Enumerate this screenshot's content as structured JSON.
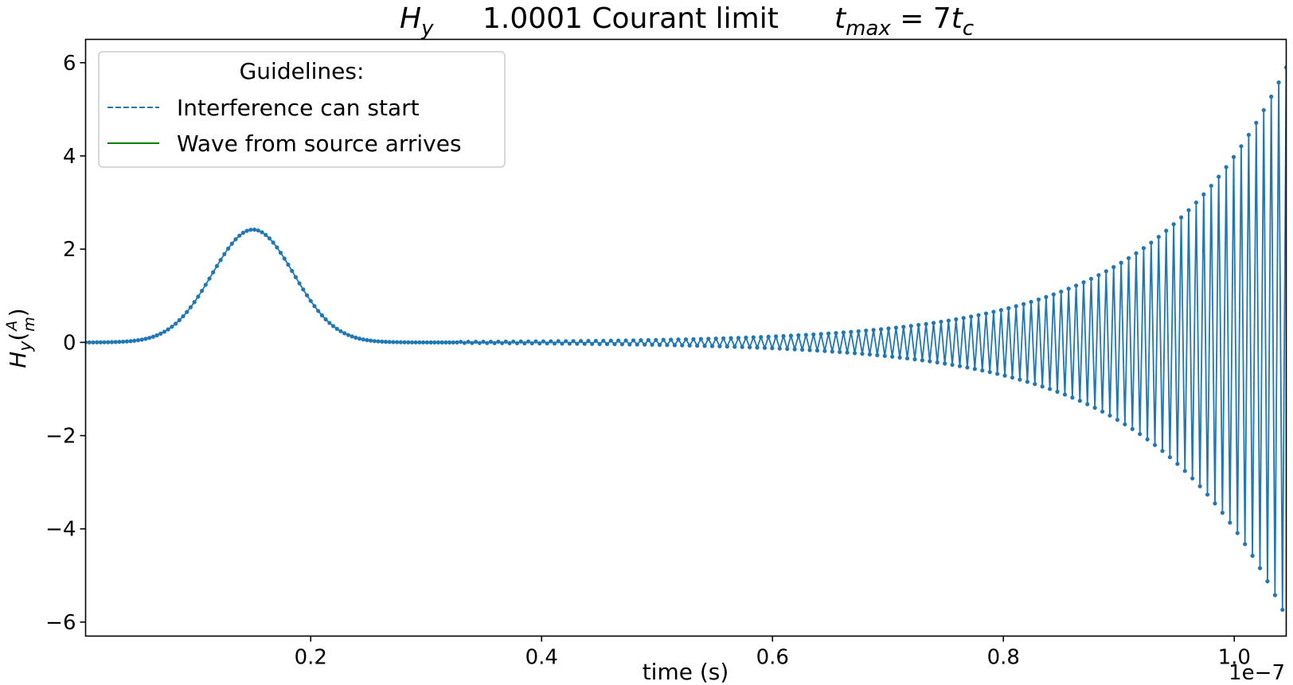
{
  "chart_data": {
    "type": "line",
    "title": {
      "var_main": "H",
      "var_sub": "y",
      "middle": "1.0001 Courant limit",
      "tmax_main": "t",
      "tmax_sub": "max",
      "tmax_eq": " = 7",
      "tc_main": "t",
      "tc_sub": "c"
    },
    "xlabel": "time (s)",
    "ylabel": {
      "main": "H",
      "sub": "y",
      "open": "(",
      "num": "A",
      "den": "m",
      "close": ")"
    },
    "x_offset_label": "1e−7",
    "xlim": [
      5e-10,
      1.045e-07
    ],
    "ylim": [
      -6.3,
      6.5
    ],
    "x_ticks": [
      {
        "value": 2e-08,
        "label": "0.2"
      },
      {
        "value": 4e-08,
        "label": "0.4"
      },
      {
        "value": 6e-08,
        "label": "0.6"
      },
      {
        "value": 8e-08,
        "label": "0.8"
      },
      {
        "value": 1e-07,
        "label": "1.0"
      }
    ],
    "y_ticks": [
      {
        "value": 6,
        "label": "6"
      },
      {
        "value": 4,
        "label": "4"
      },
      {
        "value": 2,
        "label": "2"
      },
      {
        "value": 0,
        "label": "0"
      },
      {
        "value": -2,
        "label": "−2"
      },
      {
        "value": -4,
        "label": "−4"
      },
      {
        "value": -6,
        "label": "−6"
      }
    ],
    "grid": false,
    "legend": {
      "title": "Guidelines:",
      "placement": "top-left",
      "entries": [
        {
          "label": "Interference can start",
          "color": "#1f77b4",
          "style": "dashed"
        },
        {
          "label": "Wave from source arrives",
          "color": "#008000",
          "style": "solid"
        }
      ]
    },
    "series": [
      {
        "color": "#1f77b4",
        "marker": "dot",
        "pulse": {
          "peak_time": 1.5e-08,
          "peak_value": 2.42,
          "width": 5e-09,
          "fade_end_time": 3.4e-08
        },
        "instability": {
          "start_time": 3.3e-08,
          "start_envelope": 0.012,
          "end_time": 1.045e-07,
          "end_envelope": 5.9,
          "end_negative": -5.75
        },
        "sample_step": 3.25e-10,
        "x_start": 5e-10,
        "x_end": 1.045e-07
      }
    ]
  }
}
